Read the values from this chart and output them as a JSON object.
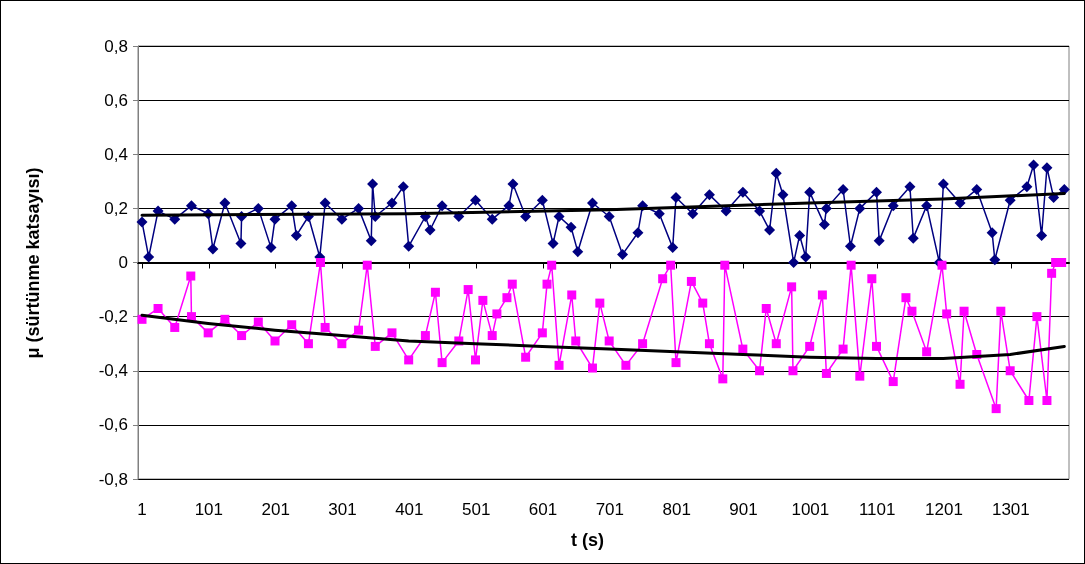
{
  "chart_data": {
    "type": "line",
    "xlabel": "t (s)",
    "ylabel": "μ (sürtünme katsayısı)",
    "xlim": [
      -5,
      1388
    ],
    "xticks": [
      1,
      101,
      201,
      301,
      401,
      501,
      601,
      701,
      801,
      901,
      1001,
      1101,
      1201,
      1301
    ],
    "ylim": [
      -0.8,
      0.8
    ],
    "yticks": [
      {
        "value": -0.8,
        "label": "-0,8"
      },
      {
        "value": -0.6,
        "label": "-0,6"
      },
      {
        "value": -0.4,
        "label": "-0,4"
      },
      {
        "value": -0.2,
        "label": "-0,2"
      },
      0,
      {
        "value": 0.2,
        "label": "0,2"
      },
      {
        "value": 0.4,
        "label": "0,4"
      },
      {
        "value": 0.6,
        "label": "0,6"
      },
      {
        "value": 0.8,
        "label": "0,8"
      }
    ],
    "grid": "y",
    "series": [
      {
        "color": "#000080",
        "marker": "diamond",
        "x": [
          1,
          11,
          25,
          50,
          75,
          100,
          107,
          125,
          149,
          150,
          175,
          194,
          200,
          225,
          232,
          250,
          267,
          275,
          300,
          325,
          344,
          346,
          350,
          375,
          392,
          400,
          425,
          432,
          450,
          475,
          500,
          525,
          550,
          556,
          575,
          600,
          616,
          625,
          643,
          653,
          675,
          700,
          720,
          743,
          750,
          775,
          795,
          800,
          825,
          850,
          875,
          900,
          925,
          940,
          950,
          960,
          976,
          985,
          994,
          1000,
          1022,
          1025,
          1050,
          1061,
          1075,
          1100,
          1104,
          1125,
          1150,
          1155,
          1175,
          1194,
          1200,
          1225,
          1250,
          1273,
          1277,
          1300,
          1325,
          1335,
          1347,
          1355,
          1365,
          1381
        ],
        "values": [
          0.15,
          0.02,
          0.19,
          0.16,
          0.21,
          0.18,
          0.05,
          0.22,
          0.07,
          0.17,
          0.2,
          0.055,
          0.16,
          0.21,
          0.1,
          0.17,
          0.02,
          0.22,
          0.16,
          0.2,
          0.08,
          0.29,
          0.17,
          0.22,
          0.28,
          0.06,
          0.17,
          0.12,
          0.21,
          0.17,
          0.23,
          0.16,
          0.21,
          0.29,
          0.17,
          0.23,
          0.07,
          0.17,
          0.13,
          0.04,
          0.22,
          0.17,
          0.03,
          0.11,
          0.21,
          0.18,
          0.055,
          0.24,
          0.18,
          0.25,
          0.19,
          0.26,
          0.19,
          0.12,
          0.33,
          0.25,
          0.0,
          0.1,
          0.02,
          0.26,
          0.14,
          0.2,
          0.27,
          0.06,
          0.2,
          0.26,
          0.08,
          0.21,
          0.28,
          0.09,
          0.21,
          0.0,
          0.29,
          0.22,
          0.27,
          0.11,
          0.01,
          0.23,
          0.28,
          0.36,
          0.1,
          0.35,
          0.24,
          0.27
        ]
      },
      {
        "color": "#ff00ff",
        "marker": "square",
        "x": [
          1,
          25,
          50,
          74,
          75,
          100,
          125,
          150,
          175,
          200,
          225,
          250,
          268,
          275,
          300,
          325,
          338,
          350,
          375,
          400,
          425,
          440,
          450,
          475,
          489,
          500,
          511,
          525,
          532,
          547,
          555,
          575,
          600,
          607,
          614,
          625,
          644,
          650,
          675,
          686,
          700,
          725,
          750,
          780,
          792,
          800,
          823,
          840,
          850,
          870,
          873,
          900,
          925,
          935,
          950,
          973,
          975,
          1000,
          1019,
          1025,
          1050,
          1062,
          1075,
          1093,
          1100,
          1125,
          1144,
          1153,
          1175,
          1198,
          1205,
          1225,
          1231,
          1250,
          1279,
          1286,
          1300,
          1328,
          1340,
          1355,
          1362,
          1368,
          1377
        ],
        "values": [
          -0.21,
          -0.17,
          -0.24,
          -0.05,
          -0.2,
          -0.26,
          -0.21,
          -0.27,
          -0.22,
          -0.29,
          -0.23,
          -0.3,
          0.0,
          -0.24,
          -0.3,
          -0.25,
          -0.01,
          -0.31,
          -0.26,
          -0.36,
          -0.27,
          -0.11,
          -0.37,
          -0.29,
          -0.1,
          -0.36,
          -0.14,
          -0.27,
          -0.19,
          -0.13,
          -0.08,
          -0.35,
          -0.26,
          -0.08,
          -0.01,
          -0.38,
          -0.12,
          -0.29,
          -0.39,
          -0.15,
          -0.29,
          -0.38,
          -0.3,
          -0.06,
          -0.01,
          -0.37,
          -0.07,
          -0.15,
          -0.3,
          -0.43,
          -0.01,
          -0.32,
          -0.4,
          -0.17,
          -0.3,
          -0.09,
          -0.4,
          -0.31,
          -0.12,
          -0.41,
          -0.32,
          -0.01,
          -0.42,
          -0.06,
          -0.31,
          -0.44,
          -0.13,
          -0.18,
          -0.33,
          -0.01,
          -0.19,
          -0.45,
          -0.18,
          -0.34,
          -0.54,
          -0.18,
          -0.4,
          -0.51,
          -0.2,
          -0.51,
          -0.04,
          0.0,
          0.0
        ]
      },
      {
        "color": "#000000",
        "marker": "none",
        "x": [
          1,
          400,
          700,
          1000,
          1200,
          1381
        ],
        "values": [
          0.175,
          0.18,
          0.195,
          0.22,
          0.235,
          0.255
        ]
      },
      {
        "color": "#000000",
        "marker": "none",
        "x": [
          1,
          100,
          200,
          300,
          400,
          500,
          600,
          700,
          800,
          900,
          1000,
          1100,
          1200,
          1300,
          1381
        ],
        "values": [
          -0.195,
          -0.225,
          -0.25,
          -0.27,
          -0.29,
          -0.3,
          -0.31,
          -0.32,
          -0.33,
          -0.34,
          -0.35,
          -0.355,
          -0.355,
          -0.34,
          -0.31
        ]
      }
    ]
  }
}
